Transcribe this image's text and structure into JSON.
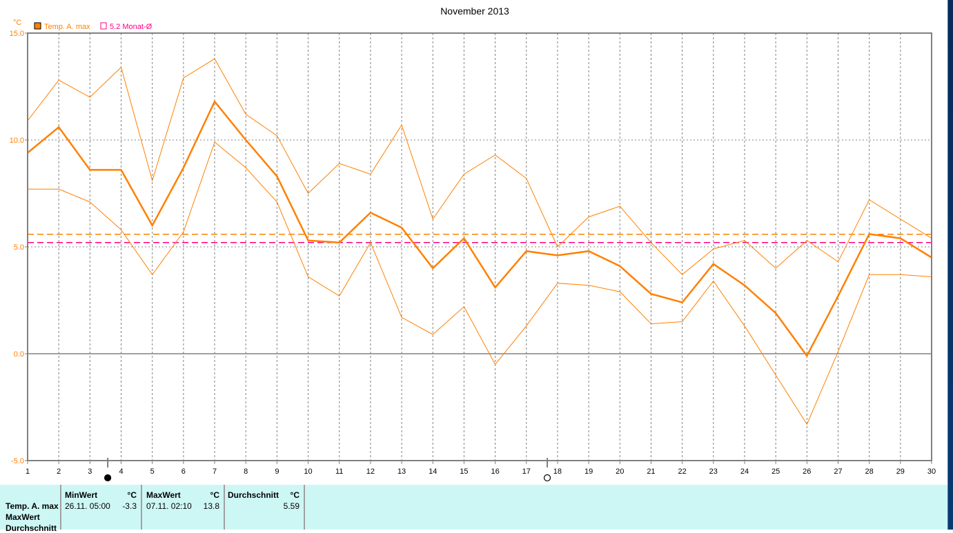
{
  "chart_data": {
    "type": "line",
    "title": "November 2013",
    "ylabel": "°C",
    "xlabel": "",
    "ylim": [
      -5,
      15
    ],
    "xlim": [
      1,
      30
    ],
    "y_ticks": [
      "15.0",
      "10.0",
      "5.0",
      "0.0",
      "-5.0"
    ],
    "y_tick_values": [
      15,
      10,
      5,
      0,
      -5
    ],
    "x": [
      1,
      2,
      3,
      4,
      5,
      6,
      7,
      8,
      9,
      10,
      11,
      12,
      13,
      14,
      15,
      16,
      17,
      18,
      19,
      20,
      21,
      22,
      23,
      24,
      25,
      26,
      27,
      28,
      29,
      30
    ],
    "legend": [
      {
        "label": "Temp. A. max",
        "color": "#ff8000"
      },
      {
        "label": "5.2 Monat-Ø",
        "color": "#ff0080"
      }
    ],
    "series": [
      {
        "name": "Temp. A. max (mean)",
        "color": "#ff8000",
        "width": 2.5,
        "values": [
          9.4,
          10.6,
          8.6,
          8.6,
          6.0,
          8.7,
          11.8,
          10.0,
          8.3,
          5.3,
          5.2,
          6.6,
          5.9,
          4.0,
          5.4,
          3.1,
          4.8,
          4.6,
          4.8,
          4.1,
          2.8,
          2.4,
          4.2,
          3.2,
          1.9,
          -0.1,
          2.7,
          5.6,
          5.4,
          4.5
        ]
      },
      {
        "name": "Temp. A. max (max)",
        "color": "#ff8000",
        "width": 1,
        "values": [
          10.9,
          12.8,
          12.0,
          13.4,
          8.1,
          12.9,
          13.8,
          11.2,
          10.2,
          7.5,
          8.9,
          8.4,
          10.7,
          6.3,
          8.4,
          9.3,
          8.2,
          5.0,
          6.4,
          6.9,
          5.2,
          3.7,
          4.9,
          5.3,
          4.0,
          5.3,
          4.3,
          7.2,
          6.3,
          5.4
        ]
      },
      {
        "name": "Temp. A. max (min)",
        "color": "#ff8000",
        "width": 1,
        "values": [
          7.7,
          7.7,
          7.1,
          5.8,
          3.7,
          5.7,
          9.9,
          8.7,
          7.1,
          3.6,
          2.7,
          5.2,
          1.7,
          0.9,
          2.2,
          -0.5,
          1.3,
          3.3,
          3.2,
          2.9,
          1.4,
          1.5,
          3.4,
          1.3,
          -1.0,
          -3.3,
          0.1,
          3.7,
          3.7,
          3.6
        ]
      }
    ],
    "reference_lines": [
      {
        "name": "average",
        "value": 5.59,
        "color": "#ff8000"
      },
      {
        "name": "Monat-Ø",
        "value": 5.2,
        "color": "#ff0080"
      }
    ],
    "moon_phases": [
      {
        "day": 3.57,
        "phase": "new-moon"
      },
      {
        "day": 17.67,
        "phase": "full-moon"
      }
    ]
  },
  "stats": {
    "row_labels": [
      "Temp. A. max",
      "MaxWert",
      "Durchschnitt"
    ],
    "min": {
      "header": "MinWert",
      "unit": "°C",
      "date": "26.11.  05:00",
      "value": "-3.3"
    },
    "max": {
      "header": "MaxWert",
      "unit": "°C",
      "date": "07.11.  02:10",
      "value": "13.8"
    },
    "avg": {
      "header": "Durchschnitt",
      "unit": "°C",
      "value": "5.59"
    }
  }
}
